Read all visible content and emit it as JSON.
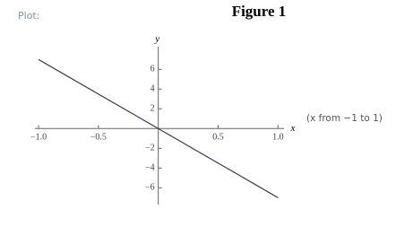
{
  "header": {
    "label": "Plot:",
    "note": "(x from −1 to 1)"
  },
  "chart_data": {
    "type": "line",
    "title": "Figure 1",
    "x_label": "x",
    "y_label": "y",
    "x": [
      -1,
      1
    ],
    "series": [
      {
        "name": "y",
        "color": "#3b3d5c",
        "values": [
          7,
          -7
        ]
      }
    ],
    "xlim": [
      -1.03,
      1.05
    ],
    "ylim": [
      -7.7,
      8.3
    ],
    "xticks": [
      {
        "value": -1,
        "label": "−1.0"
      },
      {
        "value": -0.5,
        "label": "−0.5"
      },
      {
        "value": 0.5,
        "label": "0.5"
      },
      {
        "value": 1,
        "label": "1.0"
      }
    ],
    "yticks": [
      6,
      4,
      2,
      {
        "value": -2,
        "label": "−2"
      },
      {
        "value": -4,
        "label": "−4"
      },
      {
        "value": -6,
        "label": "−6"
      }
    ]
  }
}
